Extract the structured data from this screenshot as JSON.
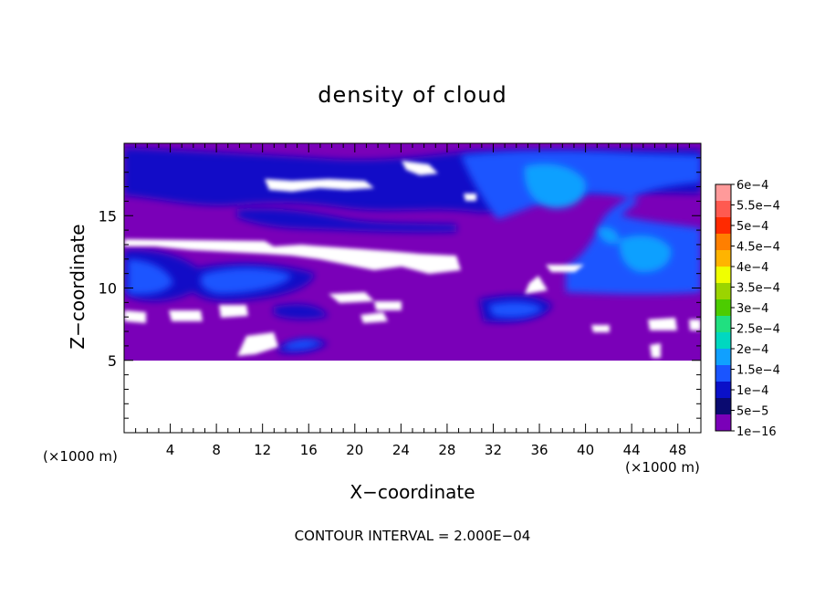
{
  "chart_data": {
    "type": "heatmap",
    "title": "density of cloud",
    "xlabel": "X−coordinate",
    "ylabel": "Z−coordinate",
    "x_unit_label_left": "(×1000 m)",
    "x_unit_label_right": "(×1000 m)",
    "footer": "CONTOUR INTERVAL = 2.000E−04",
    "xlim": [
      0,
      50
    ],
    "ylim": [
      0,
      20
    ],
    "x_ticks": [
      "4",
      "8",
      "12",
      "16",
      "20",
      "24",
      "28",
      "32",
      "36",
      "40",
      "44",
      "48"
    ],
    "x_tick_values": [
      4,
      8,
      12,
      16,
      20,
      24,
      28,
      32,
      36,
      40,
      44,
      48
    ],
    "y_ticks": [
      "5",
      "10",
      "15"
    ],
    "y_tick_values": [
      5,
      10,
      15
    ],
    "colorbar": {
      "levels": [
        "6e−4",
        "5.5e−4",
        "5e−4",
        "4.5e−4",
        "4e−4",
        "3.5e−4",
        "3e−4",
        "2.5e−4",
        "2e−4",
        "1.5e−4",
        "1e−4",
        "5e−5",
        "1e−16"
      ],
      "colors": [
        "#ff9a9a",
        "#ff5a50",
        "#ff2a00",
        "#ff7f00",
        "#ffb400",
        "#f0ff00",
        "#9bd400",
        "#4ccc00",
        "#20e080",
        "#00d8c0",
        "#10a0ff",
        "#1a55ff",
        "#0a10c8",
        "#0a0a70",
        "#7a00b8"
      ]
    },
    "field": {
      "background_value": "1e−16",
      "data_z_range": [
        5,
        20
      ],
      "regions": [
        {
          "level": "5e−5",
          "x": [
            0,
            50
          ],
          "z": [
            16,
            19.5
          ]
        },
        {
          "level": "1e−4",
          "x": [
            30,
            50
          ],
          "z": [
            8,
            19.5
          ]
        },
        {
          "level": "1.5e−4",
          "x": [
            34,
            40
          ],
          "z": [
            15,
            18.5
          ]
        },
        {
          "level": "1e−4",
          "x": [
            0,
            16
          ],
          "z": [
            9,
            12
          ]
        },
        {
          "level": "1e−4",
          "x": [
            31,
            37
          ],
          "z": [
            7.5,
            9
          ]
        },
        {
          "level": "1e−4",
          "x": [
            13,
            18
          ],
          "z": [
            5.5,
            6.5
          ]
        }
      ]
    }
  }
}
